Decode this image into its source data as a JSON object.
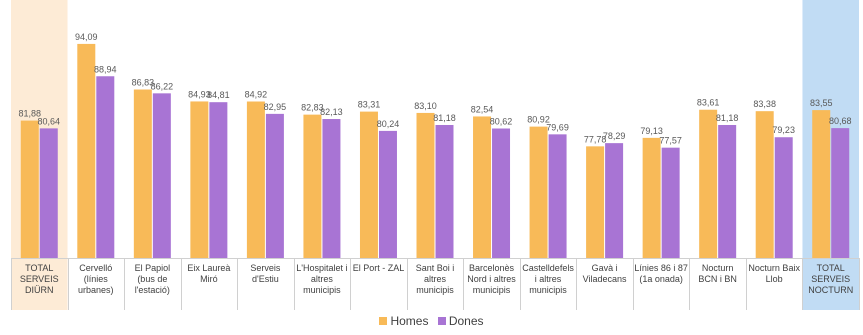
{
  "colors": {
    "homes": "#F8BA58",
    "dones": "#A874D4",
    "highlight_left": "#FDEBD6",
    "highlight_right": "#C1DCF4",
    "axis": "#D0D0D0"
  },
  "chart_data": {
    "type": "bar",
    "title": "",
    "xlabel": "",
    "ylabel": "",
    "ylim": [
      60,
      95
    ],
    "grid": false,
    "legend_position": "bottom",
    "categories": [
      "TOTAL SERVEIS DIÜRN",
      "Cervelló (línies urbanes)",
      "El Papiol (bus de l'estació)",
      "Eix Laureà Miró",
      "Serveis d'Estiu",
      "L'Hospitalet i altres municipis",
      "El Port - ZAL",
      "Sant Boi i altres municipis",
      "Barcelonès Nord i altres municipis",
      "Castelldefels i altres municipis",
      "Gavà i Viladecans",
      "Línies 86 i 87 (1a onada)",
      "Nocturn BCN i BN",
      "Nocturn Baix Llob",
      "TOTAL SERVEIS NOCTURN"
    ],
    "category_lines": [
      [
        "TOTAL",
        "SERVEIS",
        "DIÜRN"
      ],
      [
        "Cervelló",
        "(línies",
        "urbanes)"
      ],
      [
        "El Papiol",
        "(bus de",
        "l'estació)"
      ],
      [
        "Eix Laureà",
        "Miró"
      ],
      [
        "Serveis",
        "d'Estiu"
      ],
      [
        "L'Hospitalet i",
        "altres",
        "municipis"
      ],
      [
        "El Port - ZAL"
      ],
      [
        "Sant Boi i",
        "altres",
        "municipis"
      ],
      [
        "Barcelonès",
        "Nord i altres",
        "municipis"
      ],
      [
        "Castelldefels",
        "i altres",
        "municipis"
      ],
      [
        "Gavà i",
        "Viladecans"
      ],
      [
        "Línies 86 i 87",
        "(1a onada)"
      ],
      [
        "Nocturn",
        "BCN i BN"
      ],
      [
        "Nocturn Baix",
        "Llob"
      ],
      [
        "TOTAL",
        "SERVEIS",
        "NOCTURN"
      ]
    ],
    "highlighted": [
      0,
      14
    ],
    "series": [
      {
        "name": "Homes",
        "values": [
          81.88,
          94.09,
          86.83,
          84.93,
          84.92,
          82.83,
          83.31,
          83.1,
          82.54,
          80.92,
          77.78,
          79.13,
          83.61,
          83.38,
          83.55
        ],
        "labels": [
          "81,88",
          "94,09",
          "86,83",
          "84,93",
          "84,92",
          "82,83",
          "83,31",
          "83,10",
          "82,54",
          "80,92",
          "77,78",
          "79,13",
          "83,61",
          "83,38",
          "83,55"
        ]
      },
      {
        "name": "Dones",
        "values": [
          80.64,
          88.94,
          86.22,
          84.81,
          82.95,
          82.13,
          80.24,
          81.18,
          80.62,
          79.69,
          78.29,
          77.57,
          81.18,
          79.23,
          80.68
        ],
        "labels": [
          "80,64",
          "88,94",
          "86,22",
          "84,81",
          "82,95",
          "82,13",
          "80,24",
          "81,18",
          "80,62",
          "79,69",
          "78,29",
          "77,57",
          "81,18",
          "79,23",
          "80,68"
        ]
      }
    ]
  }
}
